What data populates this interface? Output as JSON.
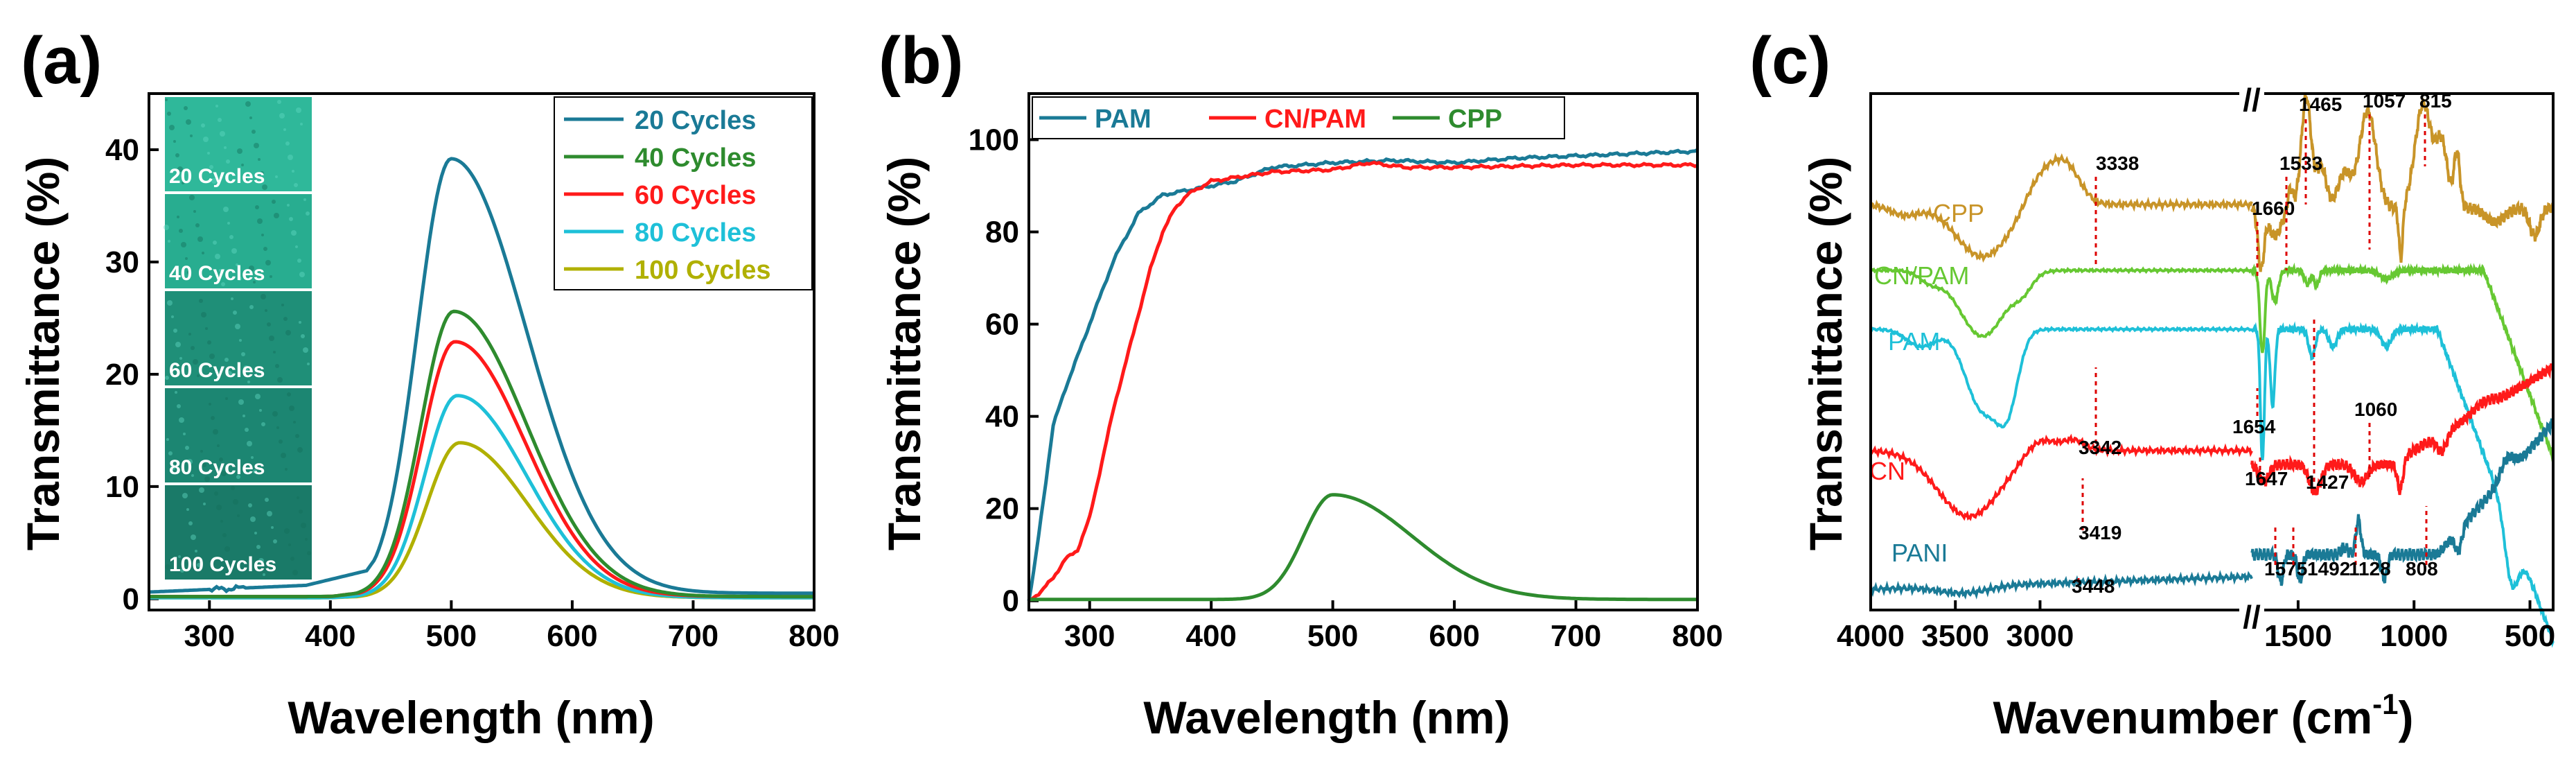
{
  "colors": {
    "teal": "#1a7a96",
    "green": "#2e8b2e",
    "red": "#ff1a1a",
    "cyan": "#1ec0d8",
    "olive": "#b0b000",
    "orange": "#c89428",
    "lightgreen": "#66c832"
  },
  "chart_data": [
    {
      "panel": "(a)",
      "type": "line",
      "xlabel": "Wavelength (nm)",
      "ylabel": "Transmittance (%)",
      "xlim": [
        250,
        800
      ],
      "ylim": [
        -1,
        45
      ],
      "xticks": [
        300,
        400,
        500,
        600,
        700,
        800
      ],
      "yticks": [
        0,
        10,
        20,
        30,
        40
      ],
      "series": [
        {
          "name": "20 Cycles",
          "color": "#1a7a96",
          "peak": 39.2,
          "center": 500,
          "sl": 28,
          "sr": 62,
          "base": 0.5,
          "prebase": [
            [
              250,
              0.6
            ],
            [
              380,
              1.2
            ],
            [
              430,
              2.5
            ],
            [
              450,
              5.5
            ]
          ]
        },
        {
          "name": "40 Cycles",
          "color": "#2e8b2e",
          "peak": 25.6,
          "center": 502,
          "sl": 27,
          "sr": 60,
          "base": 0.2,
          "prebase": [
            [
              250,
              0.1
            ],
            [
              400,
              0.2
            ],
            [
              445,
              0.8
            ]
          ]
        },
        {
          "name": "60 Cycles",
          "color": "#ff1a1a",
          "peak": 22.9,
          "center": 503,
          "sl": 27,
          "sr": 58,
          "base": 0.2,
          "prebase": [
            [
              250,
              0.1
            ],
            [
              400,
              0.2
            ],
            [
              445,
              0.8
            ]
          ]
        },
        {
          "name": "80 Cycles",
          "color": "#1ec0d8",
          "peak": 18.1,
          "center": 505,
          "sl": 27,
          "sr": 57,
          "base": 0.1,
          "prebase": [
            [
              250,
              0.1
            ],
            [
              400,
              0.1
            ],
            [
              445,
              0.4
            ]
          ]
        },
        {
          "name": "100 Cycles",
          "color": "#b0b000",
          "peak": 13.9,
          "center": 507,
          "sl": 27,
          "sr": 56,
          "base": 0.1,
          "prebase": [
            [
              250,
              0.1
            ],
            [
              400,
              0.1
            ],
            [
              445,
              0.3
            ]
          ]
        }
      ],
      "inset_labels": [
        "20 Cycles",
        "40 Cycles",
        "60 Cycles",
        "80 Cycles",
        "100 Cycles"
      ]
    },
    {
      "panel": "(b)",
      "type": "line",
      "xlabel": "Wavelength (nm)",
      "ylabel": "Transmittance (%)",
      "xlim": [
        250,
        800
      ],
      "ylim": [
        -2,
        110
      ],
      "xticks": [
        300,
        400,
        500,
        600,
        700,
        800
      ],
      "yticks": [
        0,
        20,
        40,
        60,
        80,
        100
      ],
      "series": [
        {
          "name": "PAM",
          "color": "#1a7a96",
          "points": [
            [
              250,
              0
            ],
            [
              255,
              8
            ],
            [
              262,
              22
            ],
            [
              270,
              38
            ],
            [
              280,
              46
            ],
            [
              300,
              60
            ],
            [
              320,
              74
            ],
            [
              340,
              84
            ],
            [
              360,
              88
            ],
            [
              380,
              89
            ],
            [
              400,
              90
            ],
            [
              420,
              91
            ],
            [
              450,
              94
            ],
            [
              500,
              95
            ],
            [
              550,
              95.5
            ],
            [
              600,
              95
            ],
            [
              650,
              96
            ],
            [
              700,
              96.5
            ],
            [
              750,
              97
            ],
            [
              800,
              97.5
            ]
          ]
        },
        {
          "name": "CN/PAM",
          "color": "#ff1a1a",
          "points": [
            [
              250,
              0
            ],
            [
              260,
              2
            ],
            [
              270,
              5
            ],
            [
              280,
              9
            ],
            [
              290,
              11
            ],
            [
              300,
              18
            ],
            [
              310,
              30
            ],
            [
              320,
              42
            ],
            [
              330,
              52
            ],
            [
              340,
              62
            ],
            [
              350,
              72
            ],
            [
              360,
              80
            ],
            [
              370,
              85
            ],
            [
              380,
              88
            ],
            [
              400,
              91
            ],
            [
              450,
              93
            ],
            [
              500,
              93.5
            ],
            [
              530,
              95
            ],
            [
              560,
              94
            ],
            [
              600,
              94
            ],
            [
              700,
              94.5
            ],
            [
              800,
              94.5
            ]
          ]
        },
        {
          "name": "CPP",
          "color": "#2e8b2e",
          "peak": 23,
          "center": 500,
          "sl": 24,
          "sr": 65,
          "base": 0.3
        }
      ]
    },
    {
      "panel": "(c)",
      "type": "line",
      "xlabel": "Wavenumber (cm",
      "xlabel_sup": "-1",
      "xlabel_end": ")",
      "ylabel": "Transmittance (%)",
      "axis_break": [
        1750,
        1700
      ],
      "xticks": [
        4000,
        3500,
        3000,
        1500,
        1000,
        500
      ],
      "series": [
        {
          "name": "CPP",
          "color": "#c89428"
        },
        {
          "name": "CN/PAM",
          "color": "#66c832"
        },
        {
          "name": "PAM",
          "color": "#1ec0d8"
        },
        {
          "name": "CN",
          "color": "#ff1a1a"
        },
        {
          "name": "PANI",
          "color": "#1a7a96"
        }
      ],
      "annotations": [
        "3338",
        "1660",
        "1533",
        "1465",
        "1057",
        "815",
        "3342",
        "1654",
        "1060",
        "1647",
        "1427",
        "3419",
        "3448",
        "1575",
        "1492",
        "1128",
        "808"
      ],
      "break_mark": "//"
    }
  ]
}
